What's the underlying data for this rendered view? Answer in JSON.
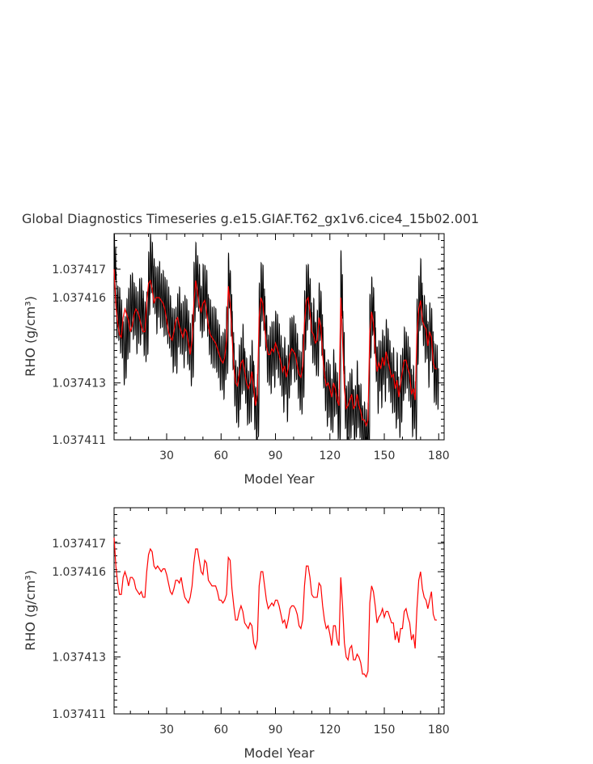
{
  "title": "Global Diagnostics Timeseries g.e15.GIAF.T62_gx1v6.cice4_15b02.001",
  "chart_data": [
    {
      "type": "line",
      "name": "top-panel",
      "xlabel": "Model Year",
      "ylabel": "RHO (g/cm³)",
      "xlim": [
        1,
        183
      ],
      "ylim": [
        1.037411,
        1.03741825
      ],
      "xticks": [
        30,
        60,
        90,
        120,
        150,
        180
      ],
      "xtick_labels": [
        "30",
        "60",
        "90",
        "120",
        "150",
        "180"
      ],
      "yticks": [
        1.037411,
        1.037413,
        1.037416,
        1.037417
      ],
      "ytick_labels": [
        "1.037411",
        "1.037413",
        "1.037416",
        "1.037417"
      ],
      "series": [
        {
          "color": "#000000",
          "kind": "monthly",
          "annual": [
            1.0374175,
            1.03741575,
            1.03741545,
            1.0374152,
            1.0374149,
            1.03741405,
            1.03741425,
            1.0374149,
            1.0374152,
            1.0374158,
            1.0374157,
            1.0374156,
            1.0374152,
            1.0374153,
            1.0374155,
            1.0374157,
            1.0374151,
            1.0374148,
            1.0374151,
            1.0374165,
            1.0374172,
            1.0374168,
            1.0374164,
            1.0374159,
            1.0374162,
            1.0374161,
            1.0374159,
            1.0374158,
            1.0374157,
            1.0374155,
            1.0374153,
            1.037415,
            1.0374145,
            1.0374146,
            1.0374145,
            1.0374152,
            1.0374152,
            1.0374149,
            1.0374147,
            1.0374151,
            1.0374148,
            1.0374145,
            1.037414,
            1.0374143,
            1.0374162,
            1.0374168,
            1.0374165,
            1.037416,
            1.0374155,
            1.037416,
            1.0374162,
            1.0374158,
            1.037415,
            1.0374148,
            1.0374146,
            1.0374146,
            1.0374145,
            1.0374142,
            1.0374139,
            1.0374137,
            1.0374136,
            1.037414,
            1.0374145,
            1.0374166,
            1.0374158,
            1.0374145,
            1.0374133,
            1.0374127,
            1.0374125,
            1.0374132,
            1.0374136,
            1.0374139,
            1.0374132,
            1.0374127,
            1.0374125,
            1.0374128,
            1.0374135,
            1.0374125,
            1.0374118,
            1.0374122,
            1.0374154,
            1.0374162,
            1.037416,
            1.0374151,
            1.0374142,
            1.0374138,
            1.0374138,
            1.0374142,
            1.037414,
            1.0374145,
            1.0374143,
            1.037414,
            1.0374136,
            1.0374131,
            1.0374136,
            1.0374128,
            1.0374134,
            1.0374141,
            1.0374144,
            1.0374142,
            1.0374141,
            1.0374136,
            1.0374131,
            1.037413,
            1.0374136,
            1.0374152,
            1.037416,
            1.0374162,
            1.0374155,
            1.0374146,
            1.0374148,
            1.0374142,
            1.0374144,
            1.0374155,
            1.0374151,
            1.0374139,
            1.0374131,
            1.0374126,
            1.0374128,
            1.0374125,
            1.0374122,
            1.037413,
            1.0374128,
            1.0374122,
            1.0374118,
            1.0374165,
            1.0374145,
            1.0374125,
            1.0374118,
            1.037412,
            1.0374122,
            1.0374125,
            1.0374116,
            1.037412,
            1.0374126,
            1.037412,
            1.0374118,
            1.0374112,
            1.0374112,
            1.037411,
            1.0374112,
            1.037415,
            1.0374157,
            1.0374152,
            1.037414,
            1.0374131,
            1.0374136,
            1.0374133,
            1.0374139,
            1.0374135,
            1.0374142,
            1.0374138,
            1.0374134,
            1.037413,
            1.0374131,
            1.0374124,
            1.0374129,
            1.037412,
            1.0374128,
            1.0374133,
            1.0374138,
            1.0374138,
            1.0374135,
            1.0374132,
            1.0374122,
            1.0374125,
            1.037412,
            1.0374148,
            1.0374158,
            1.0374162,
            1.0374152,
            1.0374149,
            1.0374148,
            1.037414,
            1.0374148,
            1.0374145,
            1.0374134,
            1.0374133,
            1.0374132
          ]
        },
        {
          "color": "#ff0000",
          "kind": "annual",
          "values": [
            1.037417,
            1.0374157,
            1.0374151,
            1.0374147,
            1.0374146,
            1.0374153,
            1.0374156,
            1.0374154,
            1.0374152,
            1.0374148,
            1.037415,
            1.0374154,
            1.0374156,
            1.0374155,
            1.0374153,
            1.037415,
            1.0374148,
            1.0374148,
            1.0374158,
            1.0374165,
            1.0374166,
            1.0374163,
            1.0374158,
            1.037416,
            1.037416,
            1.037416,
            1.0374159,
            1.0374158,
            1.0374156,
            1.0374152,
            1.0374148,
            1.0374146,
            1.0374145,
            1.0374148,
            1.0374152,
            1.0374153,
            1.037415,
            1.0374148,
            1.0374146,
            1.0374149,
            1.0374148,
            1.0374144,
            1.037414,
            1.0374145,
            1.0374158,
            1.0374166,
            1.0374162,
            1.0374157,
            1.0374155,
            1.0374158,
            1.0374159,
            1.0374155,
            1.037415,
            1.0374147,
            1.0374146,
            1.0374145,
            1.0374144,
            1.0374142,
            1.037414,
            1.0374138,
            1.0374137,
            1.0374139,
            1.0374145,
            1.0374164,
            1.0374158,
            1.0374147,
            1.0374136,
            1.037413,
            1.0374129,
            1.0374133,
            1.0374137,
            1.0374138,
            1.0374134,
            1.037413,
            1.0374128,
            1.037413,
            1.0374134,
            1.0374128,
            1.0374122,
            1.0374126,
            1.0374153,
            1.037416,
            1.0374158,
            1.037415,
            1.0374143,
            1.037414,
            1.037414,
            1.0374142,
            1.0374141,
            1.0374144,
            1.0374142,
            1.037414,
            1.0374137,
            1.0374134,
            1.0374136,
            1.0374132,
            1.0374135,
            1.037414,
            1.0374142,
            1.0374141,
            1.037414,
            1.0374136,
            1.0374133,
            1.0374132,
            1.0374136,
            1.0374151,
            1.0374159,
            1.037416,
            1.0374155,
            1.0374148,
            1.0374147,
            1.0374144,
            1.0374145,
            1.0374153,
            1.037415,
            1.037414,
            1.0374133,
            1.0374129,
            1.037413,
            1.0374128,
            1.0374125,
            1.037413,
            1.0374128,
            1.0374124,
            1.0374122,
            1.037416,
            1.0374145,
            1.0374128,
            1.0374121,
            1.0374122,
            1.0374124,
            1.0374126,
            1.0374121,
            1.0374122,
            1.0374126,
            1.0374122,
            1.037412,
            1.0374117,
            1.0374117,
            1.0374115,
            1.0374117,
            1.0374148,
            1.0374155,
            1.0374151,
            1.0374141,
            1.0374134,
            1.0374137,
            1.0374135,
            1.0374139,
            1.0374136,
            1.0374141,
            1.0374138,
            1.0374135,
            1.0374132,
            1.0374133,
            1.0374128,
            1.0374131,
            1.0374125,
            1.037413,
            1.0374134,
            1.0374138,
            1.0374138,
            1.0374135,
            1.0374133,
            1.0374126,
            1.0374128,
            1.0374124,
            1.0374147,
            1.0374156,
            1.0374159,
            1.0374152,
            1.037415,
            1.0374149,
            1.0374143,
            1.0374148,
            1.0374146,
            1.0374137,
            1.0374135,
            1.0374135
          ]
        }
      ]
    },
    {
      "type": "line",
      "name": "bottom-panel",
      "xlabel": "Model Year",
      "ylabel": "RHO (g/cm³)",
      "xlim": [
        1,
        183
      ],
      "ylim": [
        1.037411,
        1.03741825
      ],
      "xticks": [
        30,
        60,
        90,
        120,
        150,
        180
      ],
      "xtick_labels": [
        "30",
        "60",
        "90",
        "120",
        "150",
        "180"
      ],
      "yticks": [
        1.037411,
        1.037413,
        1.037416,
        1.037417
      ],
      "ytick_labels": [
        "1.037411",
        "1.037413",
        "1.037416",
        "1.037417"
      ],
      "series": [
        {
          "color": "#ff0000",
          "kind": "annual",
          "values": [
            1.0374172,
            1.0374162,
            1.0374156,
            1.0374152,
            1.0374152,
            1.0374158,
            1.037416,
            1.0374158,
            1.0374155,
            1.0374158,
            1.0374158,
            1.0374157,
            1.0374154,
            1.0374153,
            1.0374152,
            1.0374153,
            1.0374151,
            1.0374151,
            1.037416,
            1.0374166,
            1.0374168,
            1.0374167,
            1.0374162,
            1.0374161,
            1.0374162,
            1.0374161,
            1.037416,
            1.0374161,
            1.0374161,
            1.0374159,
            1.0374156,
            1.0374153,
            1.0374152,
            1.0374154,
            1.0374157,
            1.0374157,
            1.0374156,
            1.0374158,
            1.0374154,
            1.0374151,
            1.037415,
            1.0374149,
            1.0374151,
            1.0374155,
            1.0374163,
            1.0374168,
            1.0374168,
            1.0374164,
            1.037416,
            1.0374159,
            1.0374164,
            1.0374163,
            1.0374157,
            1.0374156,
            1.0374155,
            1.0374155,
            1.0374155,
            1.0374153,
            1.037415,
            1.037415,
            1.0374149,
            1.037415,
            1.0374152,
            1.0374165,
            1.0374164,
            1.0374154,
            1.0374148,
            1.0374143,
            1.0374143,
            1.0374146,
            1.0374148,
            1.0374146,
            1.0374142,
            1.0374141,
            1.037414,
            1.0374142,
            1.0374141,
            1.0374135,
            1.0374133,
            1.0374136,
            1.0374155,
            1.037416,
            1.037416,
            1.0374155,
            1.037415,
            1.0374147,
            1.0374148,
            1.0374149,
            1.0374148,
            1.037415,
            1.037415,
            1.0374148,
            1.0374145,
            1.0374142,
            1.0374143,
            1.037414,
            1.0374143,
            1.0374147,
            1.0374148,
            1.0374148,
            1.0374147,
            1.0374145,
            1.0374141,
            1.037414,
            1.0374143,
            1.0374155,
            1.0374162,
            1.0374162,
            1.0374158,
            1.0374152,
            1.0374151,
            1.0374151,
            1.0374151,
            1.0374156,
            1.0374155,
            1.0374148,
            1.0374143,
            1.037414,
            1.0374141,
            1.0374138,
            1.0374134,
            1.0374141,
            1.0374141,
            1.0374136,
            1.0374134,
            1.0374158,
            1.0374148,
            1.0374135,
            1.037413,
            1.0374129,
            1.0374133,
            1.0374134,
            1.0374129,
            1.0374129,
            1.0374131,
            1.037413,
            1.0374128,
            1.0374124,
            1.0374124,
            1.0374123,
            1.0374125,
            1.0374149,
            1.0374155,
            1.0374153,
            1.0374148,
            1.0374142,
            1.0374144,
            1.0374145,
            1.0374147,
            1.0374144,
            1.0374146,
            1.0374146,
            1.0374144,
            1.0374142,
            1.0374142,
            1.0374136,
            1.0374139,
            1.0374135,
            1.037414,
            1.037414,
            1.0374146,
            1.0374147,
            1.0374144,
            1.0374142,
            1.0374136,
            1.0374138,
            1.0374133,
            1.0374147,
            1.0374157,
            1.037416,
            1.0374154,
            1.0374151,
            1.037415,
            1.0374147,
            1.037415,
            1.0374153,
            1.0374145,
            1.0374143,
            1.0374143
          ]
        }
      ]
    }
  ]
}
